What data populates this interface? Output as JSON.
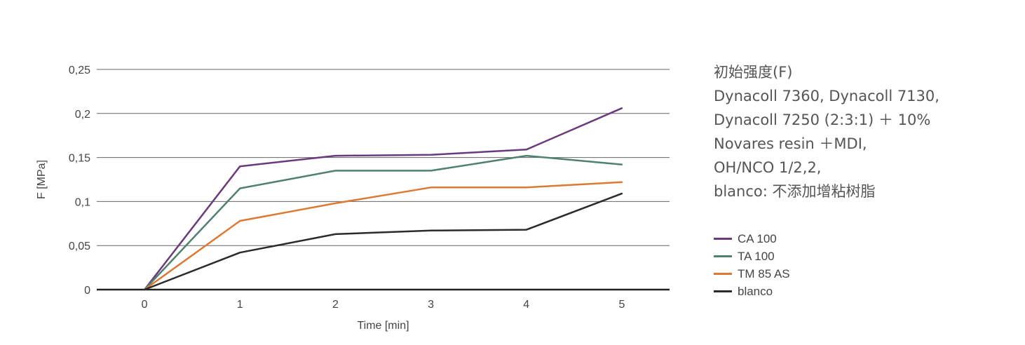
{
  "description": {
    "lines": [
      "初始强度(F)",
      "Dynacoll 7360, Dynacoll 7130,",
      "Dynacoll 7250 (2:3:1) ＋ 10%",
      "Novares resin ＋MDI,",
      "OH/NCO 1/2,2,",
      "blanco: 不添加增粘树脂"
    ]
  },
  "chart_data": {
    "type": "line",
    "x": [
      0,
      1,
      2,
      3,
      4,
      5
    ],
    "x_tick_labels": [
      "0",
      "1",
      "2",
      "3",
      "4",
      "5"
    ],
    "y_ticks": [
      0,
      0.05,
      0.1,
      0.15,
      0.2,
      0.25
    ],
    "y_tick_labels": [
      "0",
      "0,05",
      "0,1",
      "0,15",
      "0,2",
      "0,25"
    ],
    "xlabel": "Time [min]",
    "ylabel": "F [MPa]",
    "xlim": [
      -0.5,
      5.5
    ],
    "ylim": [
      0,
      0.25
    ],
    "grid": "horizontal",
    "legend_position": "right",
    "series": [
      {
        "name": "CA 100",
        "color": "#6b3a7d",
        "values": [
          0,
          0.14,
          0.152,
          0.153,
          0.159,
          0.206
        ]
      },
      {
        "name": "TA 100",
        "color": "#4f8072",
        "values": [
          0,
          0.115,
          0.135,
          0.135,
          0.152,
          0.142
        ]
      },
      {
        "name": "TM 85 AS",
        "color": "#dc7a35",
        "values": [
          0,
          0.078,
          0.098,
          0.116,
          0.116,
          0.122
        ]
      },
      {
        "name": "blanco",
        "color": "#2b2b2b",
        "values": [
          0,
          0.042,
          0.063,
          0.067,
          0.068,
          0.109
        ]
      }
    ]
  }
}
